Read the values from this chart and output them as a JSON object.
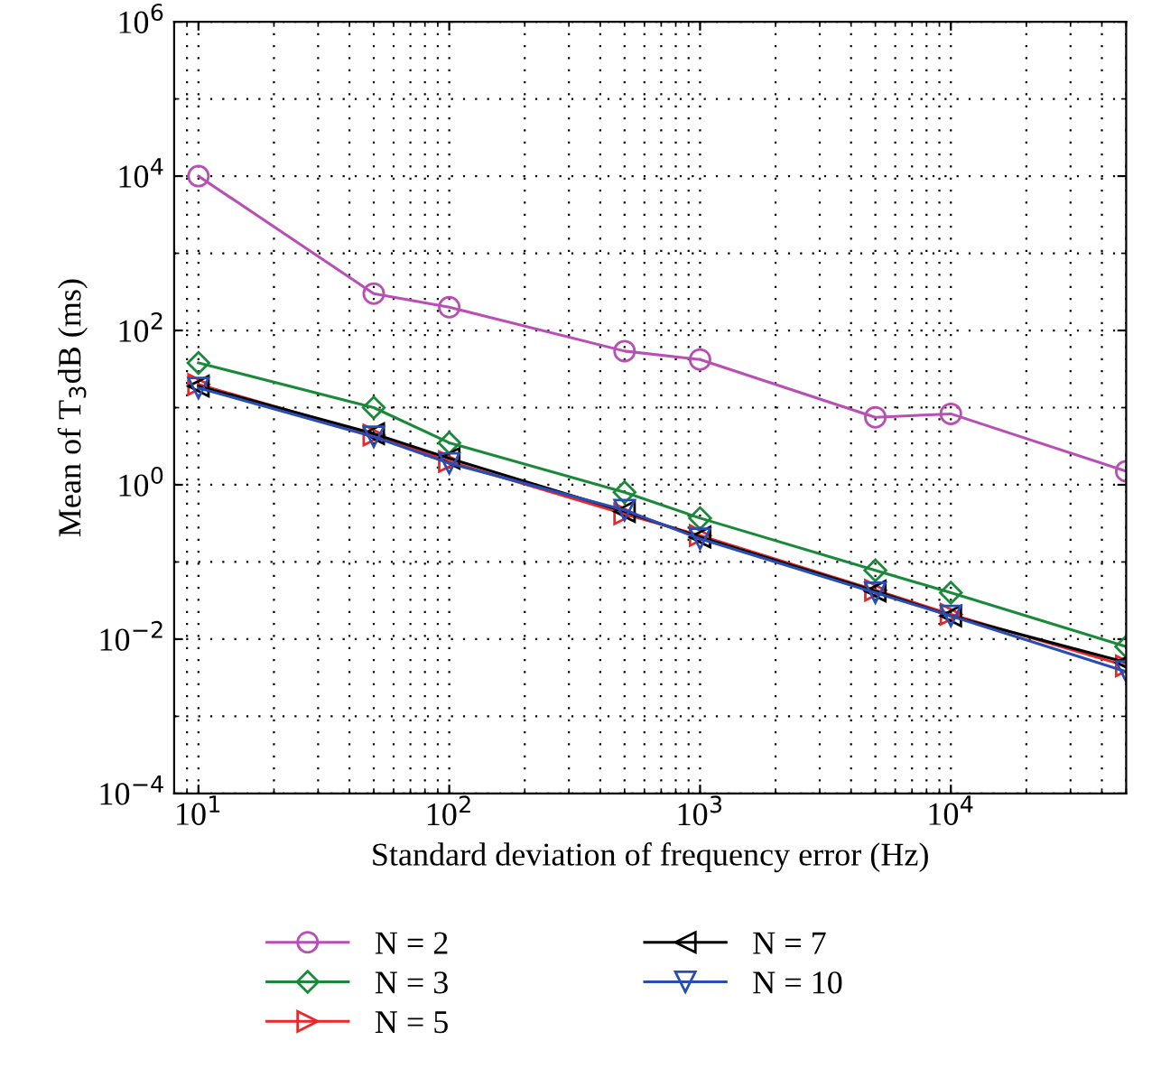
{
  "chart_data": {
    "type": "line",
    "xlabel": "Standard deviation of frequency error (Hz)",
    "ylabel": "Mean of T$_{3}$dB (ms)",
    "log": "xy",
    "grid": true,
    "legend": "bottom",
    "x": [
      10,
      50,
      100,
      500,
      1000,
      5000,
      10000,
      50000
    ],
    "xlim": [
      8,
      50000
    ],
    "xticks": [
      {
        "value": 10,
        "label": "10$^{1}$"
      },
      {
        "value": 100,
        "label": "10$^{2}$"
      },
      {
        "value": 1000,
        "label": "10$^{3}$"
      },
      {
        "value": 10000,
        "label": "10$^{4}$"
      }
    ],
    "ylim": [
      0.0001,
      1000000
    ],
    "yticks": [
      {
        "value": 0.0001,
        "label": "10$^{−4}$"
      },
      {
        "value": 0.01,
        "label": "10$^{−2}$"
      },
      {
        "value": 1,
        "label": "10$^{0}$"
      },
      {
        "value": 100,
        "label": "10$^{2}$"
      },
      {
        "value": 10000,
        "label": "10$^{4}$"
      },
      {
        "value": 1000000,
        "label": "10$^{6}$"
      }
    ],
    "series": [
      {
        "name": "N = 2",
        "color": "#b94fb5",
        "marker": "circle",
        "values": [
          10000,
          300,
          200,
          54,
          42,
          7.5,
          8.3,
          1.5
        ]
      },
      {
        "name": "N = 3",
        "color": "#1a8a3a",
        "marker": "diamond",
        "values": [
          38,
          10,
          3.5,
          0.8,
          0.37,
          0.078,
          0.04,
          0.008
        ]
      },
      {
        "name": "N = 5",
        "color": "#e8282a",
        "marker": "triangle-right",
        "values": [
          20,
          4.4,
          2.0,
          0.42,
          0.22,
          0.043,
          0.021,
          0.0045
        ]
      },
      {
        "name": "N = 7",
        "color": "#000000",
        "marker": "triangle-left",
        "values": [
          19,
          4.6,
          2.2,
          0.45,
          0.21,
          0.042,
          0.02,
          0.005
        ]
      },
      {
        "name": "N = 10",
        "color": "#2a4db5",
        "marker": "triangle-down",
        "values": [
          18,
          4.2,
          1.9,
          0.47,
          0.2,
          0.04,
          0.02,
          0.0038
        ]
      }
    ]
  }
}
